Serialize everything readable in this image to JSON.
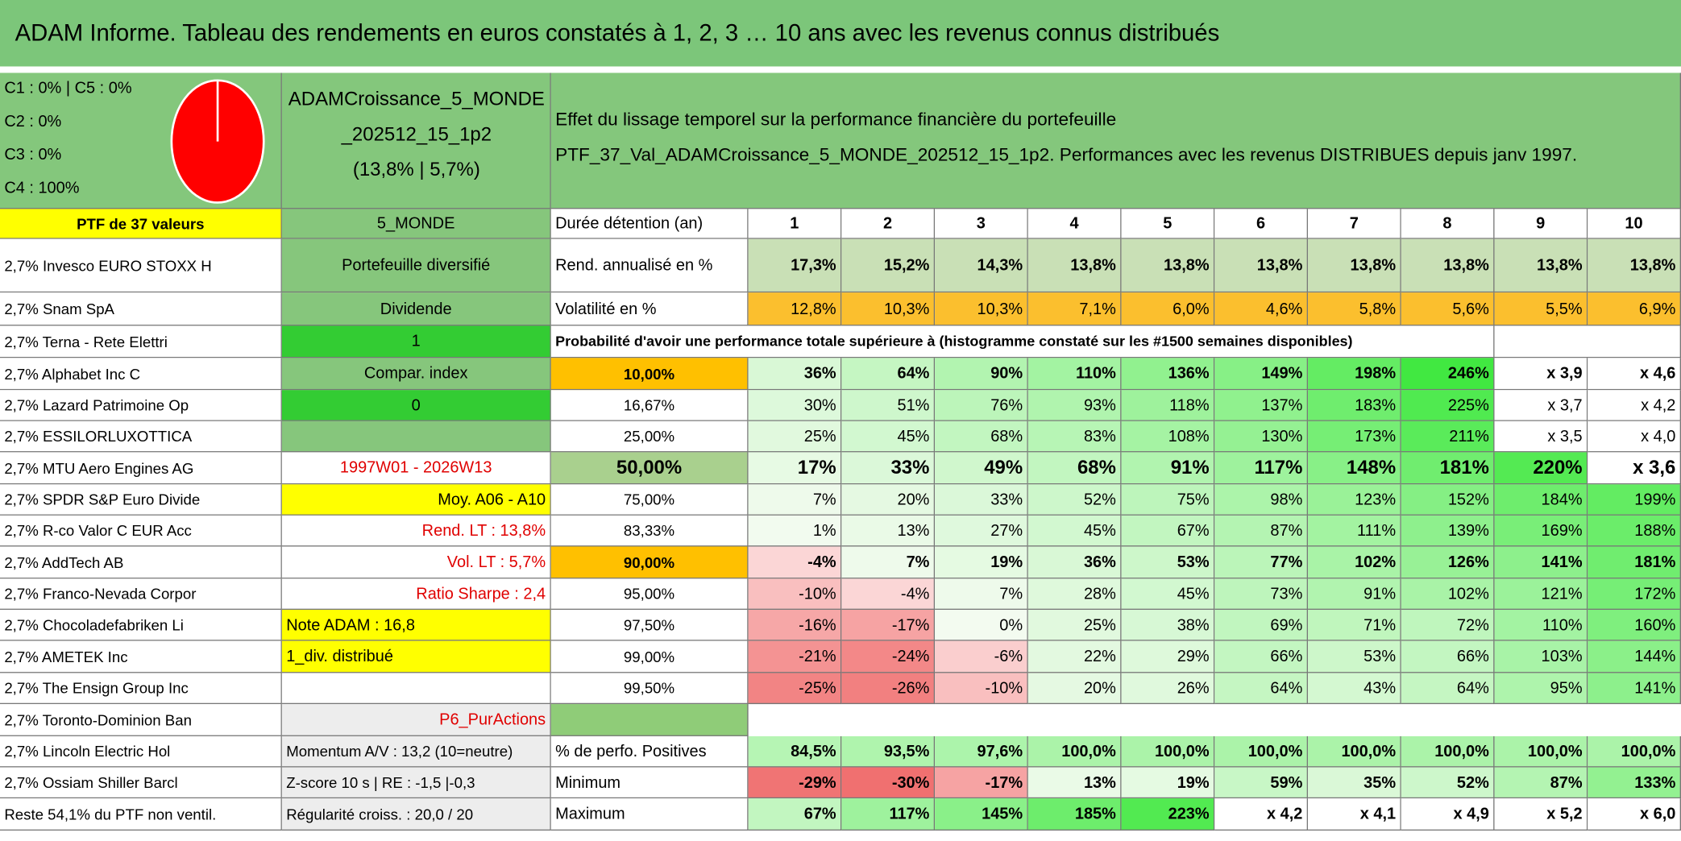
{
  "header": {
    "title": "ADAM Informe. Tableau des rendements en euros constatés à 1, 2, 3 … 10 ans avec les revenus connus distribués"
  },
  "info": {
    "pie_labels": [
      "C1 : 0% | C5 : 0%",
      "C2 : 0%",
      "C3 : 0%",
      "C4 : 100%"
    ],
    "portfolio": [
      "ADAMCroissance_5_MONDE",
      "_202512_15_1p2",
      "(13,8% | 5,7%)"
    ],
    "description": [
      "Effet du lissage temporel sur la performance financière du portefeuille",
      "PTF_37_Val_ADAMCroissance_5_MONDE_202512_15_1p2. Performances avec les revenus DISTRIBUES depuis janv 1997."
    ]
  },
  "table": {
    "rows": [
      {
        "a": "PTF de 37 valeurs",
        "b": "5_MONDE",
        "c": "Durée détention (an)",
        "v": [
          "1",
          "2",
          "3",
          "4",
          "5",
          "6",
          "7",
          "8",
          "9",
          "10"
        ]
      },
      {
        "a": "2,7% Invesco EURO STOXX H",
        "b": "Portefeuille diversifié",
        "c": "Rend. annualisé en %",
        "v": [
          "17,3%",
          "15,2%",
          "14,3%",
          "13,8%",
          "13,8%",
          "13,8%",
          "13,8%",
          "13,8%",
          "13,8%",
          "13,8%"
        ]
      },
      {
        "a": "2,7% Snam SpA",
        "b": "Dividende",
        "c": "Volatilité en %",
        "v": [
          "12,8%",
          "10,3%",
          "10,3%",
          "7,1%",
          "6,0%",
          "4,6%",
          "5,8%",
          "5,6%",
          "5,5%",
          "6,9%"
        ]
      },
      {
        "a": "2,7% Terna - Rete Elettri",
        "b": "1",
        "c": "Probabilité d'avoir une performance totale supérieure à (histogramme constaté sur les #1500 semaines disponibles)",
        "v": null
      },
      {
        "a": "2,7% Alphabet Inc C",
        "b": "Compar. index",
        "c": "10,00%",
        "v": [
          "36%",
          "64%",
          "90%",
          "110%",
          "136%",
          "149%",
          "198%",
          "246%",
          "x 3,9",
          "x 4,6"
        ]
      },
      {
        "a": "2,7% Lazard Patrimoine Op",
        "b": "0",
        "c": "16,67%",
        "v": [
          "30%",
          "51%",
          "76%",
          "93%",
          "118%",
          "137%",
          "183%",
          "225%",
          "x 3,7",
          "x 4,2"
        ]
      },
      {
        "a": "2,7% ESSILORLUXOTTICA",
        "b": null,
        "c": "25,00%",
        "v": [
          "25%",
          "45%",
          "68%",
          "83%",
          "108%",
          "130%",
          "173%",
          "211%",
          "x 3,5",
          "x 4,0"
        ]
      },
      {
        "a": "2,7% MTU Aero Engines AG",
        "b": "1997W01 - 2026W13",
        "c": "50,00%",
        "v": [
          "17%",
          "33%",
          "49%",
          "68%",
          "91%",
          "117%",
          "148%",
          "181%",
          "220%",
          "x 3,6"
        ]
      },
      {
        "a": "2,7% SPDR S&P Euro Divide",
        "b": "Moy. A06 - A10",
        "c": "75,00%",
        "v": [
          "7%",
          "20%",
          "33%",
          "52%",
          "75%",
          "98%",
          "123%",
          "152%",
          "184%",
          "199%"
        ]
      },
      {
        "a": "2,7% R-co Valor C EUR Acc",
        "b": "Rend. LT : 13,8%",
        "c": "83,33%",
        "v": [
          "1%",
          "13%",
          "27%",
          "45%",
          "67%",
          "87%",
          "111%",
          "139%",
          "169%",
          "188%"
        ]
      },
      {
        "a": "2,7% AddTech AB",
        "b": "Vol. LT : 5,7%",
        "c": "90,00%",
        "v": [
          "-4%",
          "7%",
          "19%",
          "36%",
          "53%",
          "77%",
          "102%",
          "126%",
          "141%",
          "181%"
        ]
      },
      {
        "a": "2,7% Franco-Nevada Corpor",
        "b": "Ratio Sharpe : 2,4",
        "c": "95,00%",
        "v": [
          "-10%",
          "-4%",
          "7%",
          "28%",
          "45%",
          "73%",
          "91%",
          "102%",
          "121%",
          "172%"
        ]
      },
      {
        "a": "2,7% Chocoladefabriken Li",
        "b": "Note ADAM : 16,8",
        "c": "97,50%",
        "v": [
          "-16%",
          "-17%",
          "0%",
          "25%",
          "38%",
          "69%",
          "71%",
          "72%",
          "110%",
          "160%"
        ]
      },
      {
        "a": "2,7% AMETEK Inc",
        "b": "1_div. distribué",
        "c": "99,00%",
        "v": [
          "-21%",
          "-24%",
          "-6%",
          "22%",
          "29%",
          "66%",
          "53%",
          "66%",
          "103%",
          "144%"
        ]
      },
      {
        "a": "2,7% The Ensign Group Inc",
        "b": null,
        "c": "99,50%",
        "v": [
          "-25%",
          "-26%",
          "-10%",
          "20%",
          "26%",
          "64%",
          "43%",
          "64%",
          "95%",
          "141%"
        ]
      },
      {
        "a": "2,7% Toronto-Dominion Ban",
        "b": "P6_PurActions",
        "c": null,
        "v": null
      },
      {
        "a": "2,7% Lincoln Electric Hol",
        "b": "Momentum A/V : 13,2 (10=neutre)",
        "c": "% de perfo. Positives",
        "v": [
          "84,5%",
          "93,5%",
          "97,6%",
          "100,0%",
          "100,0%",
          "100,0%",
          "100,0%",
          "100,0%",
          "100,0%",
          "100,0%"
        ]
      },
      {
        "a": "2,7% Ossiam Shiller Barcl",
        "b": "Z-score 10 s | RE : -1,5 |-0,3",
        "c": "Minimum",
        "v": [
          "-29%",
          "-30%",
          "-17%",
          "13%",
          "19%",
          "59%",
          "35%",
          "52%",
          "87%",
          "133%"
        ]
      },
      {
        "a": "Reste 54,1% du PTF non ventil.",
        "b": "Régularité croiss. : 20,0 / 20",
        "c": "Maximum",
        "v": [
          "67%",
          "117%",
          "145%",
          "185%",
          "223%",
          "x 4,2",
          "x 4,1",
          "x 4,9",
          "x 5,2",
          "x 6,0"
        ]
      }
    ]
  }
}
